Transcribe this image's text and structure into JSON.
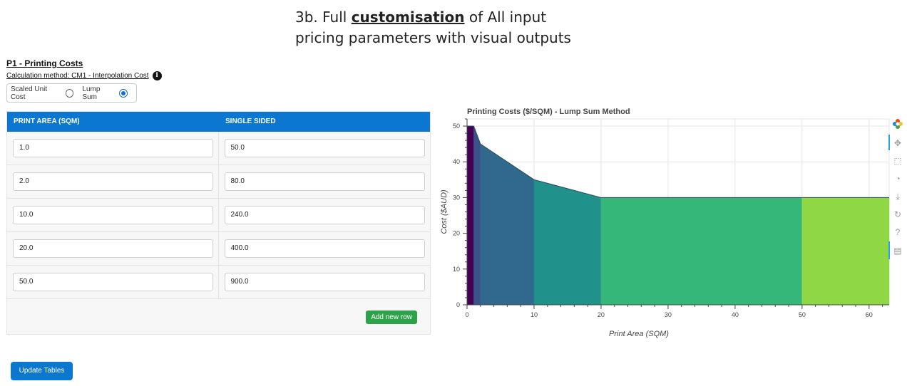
{
  "caption": {
    "line1_pre": "3b. Full ",
    "line1_emph": "customisation",
    "line1_post": " of All input",
    "line2": "pricing parameters with visual outputs"
  },
  "section": {
    "title": "P1 - Printing Costs",
    "method": "Calculation method: CM1 - Interpolation Cost",
    "info_icon": "info-icon"
  },
  "pricing_mode": {
    "options": [
      {
        "label": "Scaled Unit Cost",
        "selected": false
      },
      {
        "label": "Lump Sum",
        "selected": true
      }
    ]
  },
  "table": {
    "headers": [
      "PRINT AREA (SQM)",
      "SINGLE SIDED"
    ],
    "rows": [
      [
        "1.0",
        "50.0"
      ],
      [
        "2.0",
        "80.0"
      ],
      [
        "10.0",
        "240.0"
      ],
      [
        "20.0",
        "400.0"
      ],
      [
        "50.0",
        "900.0"
      ]
    ],
    "add_row_label": "Add new row"
  },
  "update_button": "Update Tables",
  "chart_data": {
    "type": "area",
    "title": "Printing Costs ($/SQM) - Lump Sum Method",
    "xlabel": "Print Area (SQM)",
    "ylabel": "Cost ($AUD)",
    "xlim": [
      0,
      63
    ],
    "ylim": [
      0,
      52
    ],
    "xticks": [
      0,
      10,
      20,
      30,
      40,
      50,
      60
    ],
    "yticks": [
      0,
      10,
      20,
      30,
      40,
      50
    ],
    "grid": true,
    "segments": [
      {
        "x0": 0,
        "x1": 1,
        "y0": 50,
        "y1": 50,
        "color": "#440154"
      },
      {
        "x0": 1,
        "x1": 2,
        "y0": 50,
        "y1": 45,
        "color": "#3b528b"
      },
      {
        "x0": 2,
        "x1": 10,
        "y0": 45,
        "y1": 35,
        "color": "#31688e"
      },
      {
        "x0": 10,
        "x1": 20,
        "y0": 35,
        "y1": 30,
        "color": "#21918c"
      },
      {
        "x0": 20,
        "x1": 50,
        "y0": 30,
        "y1": 30,
        "color": "#35b779"
      },
      {
        "x0": 50,
        "x1": 63,
        "y0": 30,
        "y1": 30,
        "color": "#8fd744"
      }
    ]
  },
  "toolbar_icons": [
    "bokeh-logo-icon",
    "pan-icon",
    "box-zoom-icon",
    "wheel-zoom-icon",
    "save-icon",
    "reset-icon",
    "help-icon",
    "hover-icon"
  ]
}
